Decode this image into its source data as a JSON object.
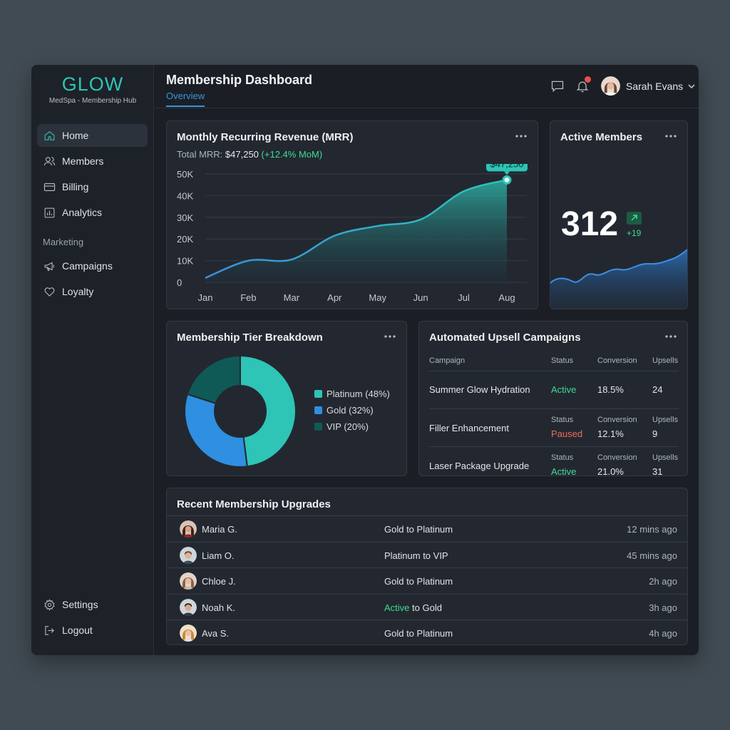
{
  "brand": {
    "name": "GLOW",
    "subtitle": "MedSpa - Membership Hub"
  },
  "sidebar": {
    "items": [
      {
        "label": "Home",
        "icon": "home-icon",
        "active": true
      },
      {
        "label": "Members",
        "icon": "users-icon"
      },
      {
        "label": "Billing",
        "icon": "credit-card-icon"
      },
      {
        "label": "Analytics",
        "icon": "bar-chart-icon"
      }
    ],
    "section_label": "Marketing",
    "marketing_items": [
      {
        "label": "Campaigns",
        "icon": "megaphone-icon"
      },
      {
        "label": "Loyalty",
        "icon": "heart-icon"
      }
    ],
    "bottom_items": [
      {
        "label": "Settings",
        "icon": "gear-icon"
      },
      {
        "label": "Logout",
        "icon": "logout-icon"
      }
    ]
  },
  "header": {
    "title": "Membership Dashboard",
    "tab": "Overview",
    "user_name": "Sarah Evans"
  },
  "mrr": {
    "title": "Monthly Recurring Revenue (MRR)",
    "total_label": "Total MRR:",
    "total_value": "$47,250",
    "change": "(+12.4% MoM)",
    "tooltip": "$47,250"
  },
  "chart_data": {
    "type": "area",
    "x": [
      "Jan",
      "Feb",
      "Mar",
      "Apr",
      "May",
      "Jun",
      "Jul",
      "Aug"
    ],
    "series": [
      {
        "values": [
          2000,
          10000,
          10500,
          21500,
          26000,
          29000,
          42000,
          47250
        ]
      }
    ],
    "yticks": [
      "0",
      "10K",
      "20K",
      "30K",
      "40K",
      "50K"
    ],
    "ylim": [
      0,
      50000
    ],
    "grid": true,
    "color": "#2ec4b6"
  },
  "active_members": {
    "title": "Active Members",
    "count": "312",
    "delta": "+19"
  },
  "tiers": {
    "title": "Membership Tier Breakdown",
    "slices": [
      {
        "label": "Platinum (48%)",
        "value": 48,
        "color": "#2ec4b6"
      },
      {
        "label": "Gold (32%)",
        "value": 32,
        "color": "#2f8fe0"
      },
      {
        "label": "VIP (20%)",
        "value": 20,
        "color": "#0f5a57"
      }
    ]
  },
  "upsell": {
    "title": "Automated Upsell Campaigns",
    "headers": {
      "campaign": "Campaign",
      "status": "Status",
      "conversion": "Conversion",
      "upsells": "Upsells"
    },
    "rows": [
      {
        "name": "Summer Glow Hydration",
        "status": "Active",
        "status_kind": "active",
        "conversion": "18.5%",
        "upsells": "24",
        "show_labels": false
      },
      {
        "name": "Filler Enhancement",
        "status": "Paused",
        "status_kind": "paused",
        "conversion": "12.1%",
        "upsells": "9",
        "show_labels": true
      },
      {
        "name": "Laser Package Upgrade",
        "status": "Active",
        "status_kind": "active",
        "conversion": "21.0%",
        "upsells": "31",
        "show_labels": true
      }
    ]
  },
  "recent": {
    "title": "Recent Membership Upgrades",
    "rows": [
      {
        "name": "Maria G.",
        "change": "Gold to Platinum",
        "time": "12 mins ago"
      },
      {
        "name": "Liam O.",
        "change": "Platinum to VIP",
        "time": "45 mins ago"
      },
      {
        "name": "Chloe J.",
        "change": "Gold to Platinum",
        "time": "2h ago"
      },
      {
        "name": "Noah K.",
        "change_hl": "Active",
        "change_rest": " to Gold",
        "time": "3h ago"
      },
      {
        "name": "Ava S.",
        "change": "Gold to Platinum",
        "time": "4h ago"
      }
    ]
  }
}
